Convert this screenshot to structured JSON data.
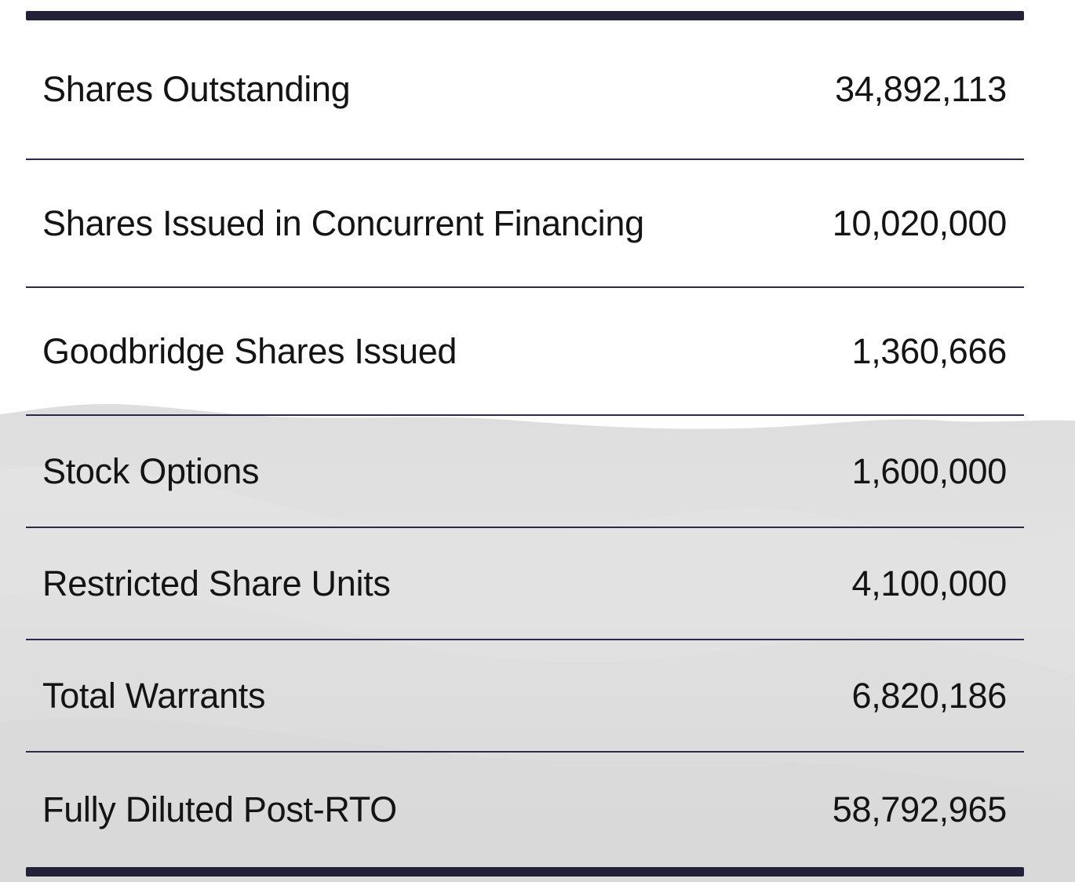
{
  "rows": [
    {
      "label": "Shares Outstanding",
      "value": "34,892,113"
    },
    {
      "label": "Shares Issued in Concurrent Financing",
      "value": "10,020,000"
    },
    {
      "label": "Goodbridge Shares Issued",
      "value": "1,360,666"
    },
    {
      "label": "Stock Options",
      "value": "1,600,000"
    },
    {
      "label": "Restricted Share Units",
      "value": "4,100,000"
    },
    {
      "label": "Total Warrants",
      "value": "6,820,186"
    },
    {
      "label": "Fully Diluted Post-RTO",
      "value": "58,792,965"
    }
  ],
  "colors": {
    "rule": "#23213a",
    "text": "#141414",
    "background_image_tone": "#e6e6e6"
  }
}
